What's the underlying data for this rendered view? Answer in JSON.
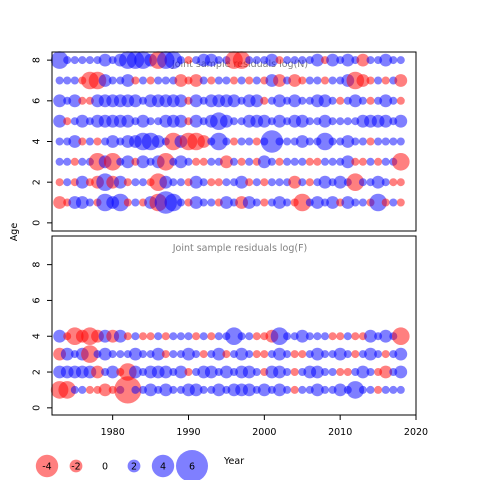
{
  "colors": {
    "negative": "#ff0000",
    "positive": "#0000ff",
    "title": "#808080"
  },
  "chart_data": {
    "type": "scatter",
    "ylabel": "Age",
    "xlabel": "Year",
    "xlim": [
      1972,
      2020
    ],
    "x_ticks": [
      1980,
      1990,
      2000,
      2010,
      2020
    ],
    "y_ticks": [
      0,
      2,
      4,
      6,
      8
    ],
    "panels": [
      {
        "title": "Joint sample residuals log(N)",
        "ylim": [
          -0.4,
          8.4
        ],
        "ages": [
          1,
          2,
          3,
          4,
          5,
          6,
          7,
          8
        ],
        "years": [
          1973,
          1974,
          1975,
          1976,
          1977,
          1978,
          1979,
          1980,
          1981,
          1982,
          1983,
          1984,
          1985,
          1986,
          1987,
          1988,
          1989,
          1990,
          1991,
          1992,
          1993,
          1994,
          1995,
          1996,
          1997,
          1998,
          1999,
          2000,
          2001,
          2002,
          2003,
          2004,
          2005,
          2006,
          2007,
          2008,
          2009,
          2010,
          2011,
          2012,
          2013,
          2014,
          2015,
          2016,
          2017,
          2018
        ],
        "residuals": {
          "1": [
            -2,
            -1,
            2,
            2,
            1,
            -1,
            3,
            2,
            3,
            -1,
            1,
            -1,
            2,
            -3,
            4,
            3,
            1,
            -1,
            2,
            1,
            1,
            -1,
            2,
            1,
            -2,
            2,
            1,
            -1,
            1,
            2,
            1,
            -1,
            -3,
            1,
            2,
            1,
            2,
            -1,
            2,
            1,
            1,
            -1,
            3,
            -1,
            1,
            -1
          ],
          "2": [
            -1,
            1,
            -1,
            2,
            -1,
            -2,
            3,
            -2,
            2,
            -1,
            1,
            1,
            -1,
            -3,
            2,
            1,
            1,
            -1,
            2,
            1,
            -1,
            -1,
            1,
            1,
            2,
            -1,
            1,
            -1,
            1,
            1,
            1,
            -2,
            1,
            -1,
            1,
            2,
            1,
            2,
            1,
            -3,
            1,
            1,
            2,
            1,
            -1,
            -1
          ],
          "3": [
            1,
            1,
            -1,
            1,
            1,
            -3,
            2,
            -3,
            1,
            2,
            -1,
            2,
            1,
            2,
            -3,
            1,
            2,
            1,
            -1,
            -1,
            1,
            1,
            -2,
            1,
            -1,
            1,
            -1,
            2,
            1,
            -1,
            1,
            1,
            1,
            -1,
            -1,
            1,
            1,
            1,
            2,
            -1,
            -1,
            1,
            -1,
            1,
            1,
            -3
          ],
          "4": [
            1,
            1,
            2,
            -1,
            1,
            -1,
            1,
            2,
            1,
            2,
            2,
            3,
            3,
            2,
            1,
            -3,
            2,
            -3,
            -3,
            -2,
            1,
            3,
            1,
            -1,
            1,
            1,
            -1,
            1,
            4,
            1,
            1,
            1,
            2,
            1,
            1,
            3,
            1,
            1,
            2,
            1,
            1,
            -1,
            1,
            1,
            1,
            1
          ],
          "5": [
            2,
            -1,
            1,
            2,
            1,
            2,
            2,
            2,
            2,
            2,
            1,
            2,
            1,
            1,
            2,
            2,
            2,
            -1,
            2,
            1,
            2,
            3,
            2,
            1,
            1,
            2,
            2,
            2,
            1,
            2,
            1,
            2,
            2,
            1,
            1,
            2,
            1,
            1,
            1,
            1,
            2,
            2,
            2,
            2,
            1,
            2
          ],
          "6": [
            2,
            1,
            2,
            -1,
            -1,
            2,
            2,
            2,
            2,
            2,
            2,
            1,
            2,
            2,
            2,
            2,
            2,
            -1,
            2,
            1,
            2,
            2,
            2,
            2,
            1,
            2,
            2,
            -1,
            1,
            2,
            1,
            2,
            1,
            1,
            2,
            2,
            1,
            -1,
            1,
            2,
            1,
            -1,
            1,
            2,
            1,
            -1
          ],
          "7": [
            1,
            1,
            1,
            -1,
            -3,
            -3,
            2,
            1,
            1,
            2,
            -1,
            1,
            -1,
            1,
            1,
            1,
            -2,
            -1,
            -2,
            1,
            -1,
            1,
            1,
            -1,
            1,
            -1,
            1,
            -1,
            2,
            -2,
            1,
            -2,
            -1,
            1,
            1,
            -1,
            1,
            1,
            2,
            -3,
            -2,
            -1,
            1,
            -1,
            1,
            -2
          ],
          "8": [
            3,
            1,
            1,
            1,
            1,
            1,
            2,
            1,
            2,
            3,
            3,
            3,
            2,
            -3,
            3,
            3,
            1,
            -1,
            1,
            2,
            2,
            1,
            1,
            -3,
            -3,
            1,
            1,
            1,
            2,
            -1,
            1,
            1,
            1,
            1,
            2,
            -1,
            2,
            1,
            2,
            1,
            -2,
            1,
            1,
            2,
            1,
            1
          ]
        }
      },
      {
        "title": "Joint sample residuals log(F)",
        "ylim": [
          -0.4,
          9.6
        ],
        "ages": [
          1,
          2,
          3,
          4
        ],
        "years": [
          1973,
          1974,
          1975,
          1976,
          1977,
          1978,
          1979,
          1980,
          1981,
          1982,
          1983,
          1984,
          1985,
          1986,
          1987,
          1988,
          1989,
          1990,
          1991,
          1992,
          1993,
          1994,
          1995,
          1996,
          1997,
          1998,
          1999,
          2000,
          2001,
          2002,
          2003,
          2004,
          2005,
          2006,
          2007,
          2008,
          2009,
          2010,
          2011,
          2012,
          2013,
          2014,
          2015,
          2016,
          2017,
          2018
        ],
        "residuals": {
          "1": [
            -3,
            -3,
            1,
            1,
            -1,
            -1,
            -2,
            -1,
            1,
            -5,
            1,
            1,
            2,
            1,
            2,
            1,
            1,
            2,
            2,
            1,
            1,
            2,
            1,
            2,
            2,
            2,
            1,
            2,
            1,
            2,
            1,
            -1,
            1,
            1,
            2,
            1,
            1,
            2,
            1,
            3,
            1,
            1,
            -1,
            1,
            1,
            1
          ],
          "2": [
            2,
            2,
            2,
            2,
            2,
            -2,
            1,
            2,
            -1,
            -3,
            2,
            1,
            2,
            2,
            2,
            1,
            2,
            -1,
            1,
            2,
            2,
            1,
            2,
            1,
            2,
            2,
            1,
            -1,
            2,
            2,
            1,
            -1,
            1,
            2,
            2,
            1,
            1,
            -1,
            -1,
            1,
            2,
            1,
            -1,
            -2,
            1,
            2
          ],
          "3": [
            -2,
            2,
            1,
            2,
            -3,
            1,
            2,
            1,
            1,
            1,
            2,
            1,
            1,
            2,
            -1,
            1,
            1,
            2,
            1,
            -1,
            1,
            2,
            -1,
            1,
            2,
            1,
            -1,
            -1,
            1,
            2,
            1,
            -1,
            -1,
            1,
            2,
            1,
            1,
            2,
            1,
            -1,
            1,
            2,
            1,
            -1,
            1,
            2
          ],
          "4": [
            2,
            -1,
            -3,
            -2,
            -3,
            -2,
            2,
            -2,
            2,
            -1,
            1,
            -1,
            -1,
            1,
            -1,
            1,
            1,
            1,
            -1,
            1,
            -1,
            1,
            1,
            3,
            1,
            1,
            -1,
            -1,
            -2,
            3,
            1,
            1,
            2,
            1,
            1,
            1,
            -1,
            -1,
            1,
            -1,
            -1,
            2,
            1,
            2,
            1,
            -3
          ]
        }
      }
    ],
    "legend": {
      "values": [
        -4,
        -2,
        0,
        2,
        4,
        6
      ],
      "labels": [
        "-4",
        "-2",
        "0",
        "2",
        "4",
        "6"
      ]
    }
  }
}
